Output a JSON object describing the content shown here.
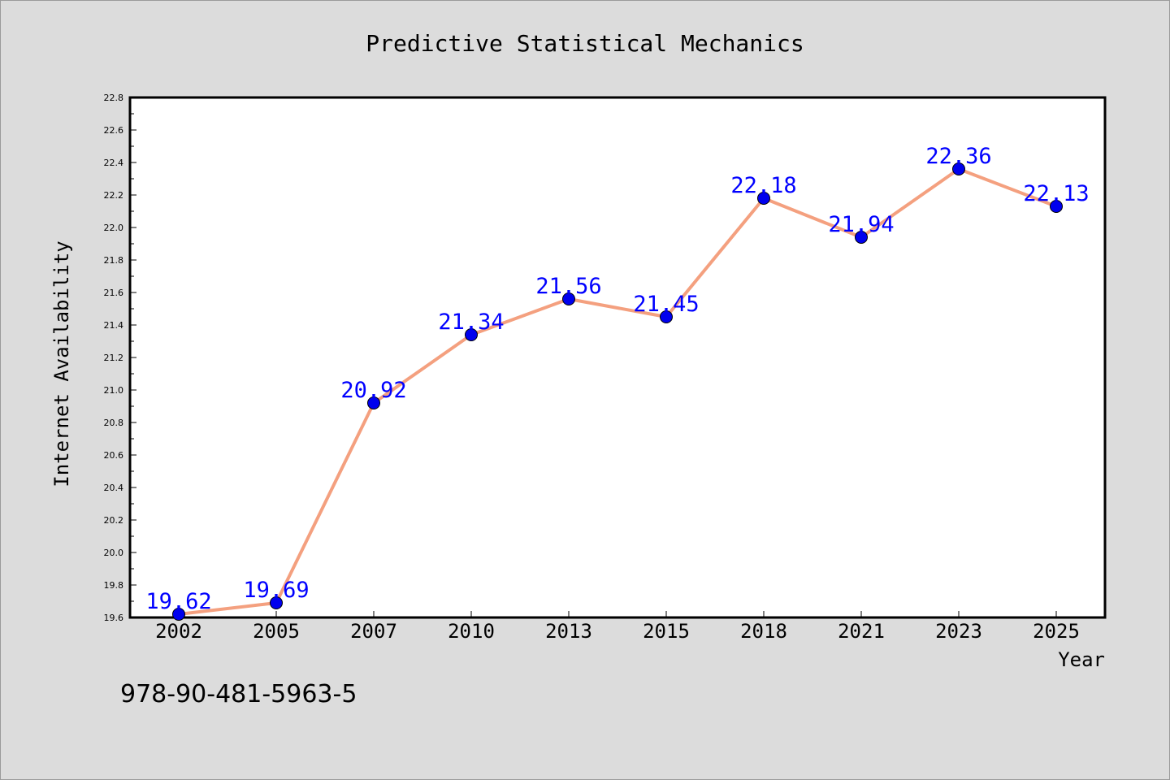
{
  "chart_data": {
    "type": "line",
    "title": "Predictive Statistical Mechanics",
    "xlabel": "Year",
    "ylabel": "Internet Availability",
    "categories": [
      "2002",
      "2005",
      "2007",
      "2010",
      "2013",
      "2015",
      "2018",
      "2021",
      "2023",
      "2025"
    ],
    "values": [
      19.62,
      19.69,
      20.92,
      21.34,
      21.56,
      21.45,
      22.18,
      21.94,
      22.36,
      22.13
    ],
    "ylim": [
      19.6,
      22.8
    ],
    "yticks": [
      "19.6",
      "19.8",
      "20.0",
      "20.2",
      "20.4",
      "20.6",
      "20.8",
      "21.0",
      "21.2",
      "21.4",
      "21.6",
      "21.8",
      "22.0",
      "22.2",
      "22.4",
      "22.6",
      "22.8"
    ],
    "data_labels": [
      "19.62",
      "19.69",
      "20.92",
      "21.34",
      "21.56",
      "21.45",
      "22.18",
      "21.94",
      "22.36",
      "22.13"
    ],
    "grid": false,
    "line_color": "#f4a07f",
    "marker_color": "#0000ee",
    "label_color": "#0000ff"
  },
  "footer_text": "978-90-481-5963-5"
}
